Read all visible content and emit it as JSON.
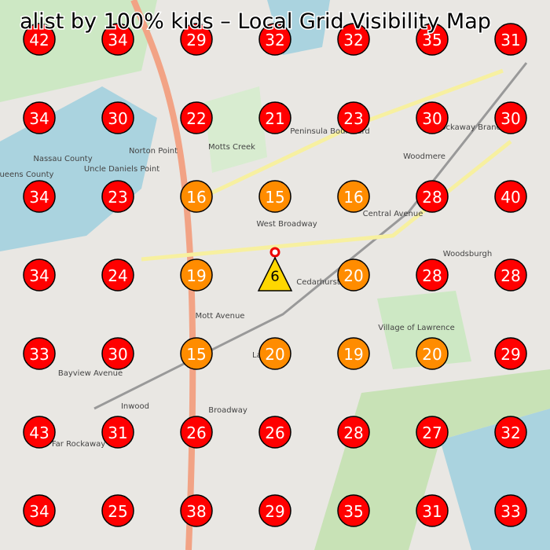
{
  "title": "alist by 100% kids – Local Grid Visibility Map",
  "grid": {
    "rows": [
      [
        42,
        34,
        29,
        32,
        32,
        35,
        31
      ],
      [
        34,
        30,
        22,
        21,
        23,
        30,
        30
      ],
      [
        34,
        23,
        16,
        15,
        16,
        28,
        40
      ],
      [
        34,
        24,
        19,
        null,
        20,
        28,
        28
      ],
      [
        33,
        30,
        15,
        20,
        19,
        20,
        29
      ],
      [
        43,
        31,
        26,
        26,
        28,
        27,
        32
      ],
      [
        34,
        25,
        38,
        29,
        35,
        31,
        33
      ]
    ],
    "colors": [
      [
        "#ff0000",
        "#ff0000",
        "#ff0000",
        "#ff0000",
        "#ff0000",
        "#ff0000",
        "#ff0000"
      ],
      [
        "#ff0000",
        "#ff0000",
        "#ff0000",
        "#ff0000",
        "#ff0000",
        "#ff0000",
        "#ff0000"
      ],
      [
        "#ff0000",
        "#ff0000",
        "#ff8c00",
        "#ff8c00",
        "#ff8c00",
        "#ff0000",
        "#ff0000"
      ],
      [
        "#ff0000",
        "#ff0000",
        "#ff8c00",
        null,
        "#ff8c00",
        "#ff0000",
        "#ff0000"
      ],
      [
        "#ff0000",
        "#ff0000",
        "#ff8c00",
        "#ff8c00",
        "#ff8c00",
        "#ff8c00",
        "#ff0000"
      ],
      [
        "#ff0000",
        "#ff0000",
        "#ff0000",
        "#ff0000",
        "#ff0000",
        "#ff0000",
        "#ff0000"
      ],
      [
        "#ff0000",
        "#ff0000",
        "#ff0000",
        "#ff0000",
        "#ff0000",
        "#ff0000",
        "#ff0000"
      ]
    ]
  },
  "observer": {
    "value": 6,
    "color": "#ffd700"
  },
  "map_labels": [
    "Norton Point",
    "Uncle Daniels Point",
    "Motts Creek",
    "Woodmere",
    "Cedarhurst",
    "Lawrence",
    "Inwood",
    "Far Rockaway",
    "West Broadway",
    "Peninsula Boulevard",
    "Central Avenue",
    "Mott Avenue",
    "Broadway",
    "Woodsburgh",
    "Village of Lawrence",
    "Far Rockaway Branch",
    "Bayview Avenue",
    "Nassau County",
    "Queens County"
  ]
}
